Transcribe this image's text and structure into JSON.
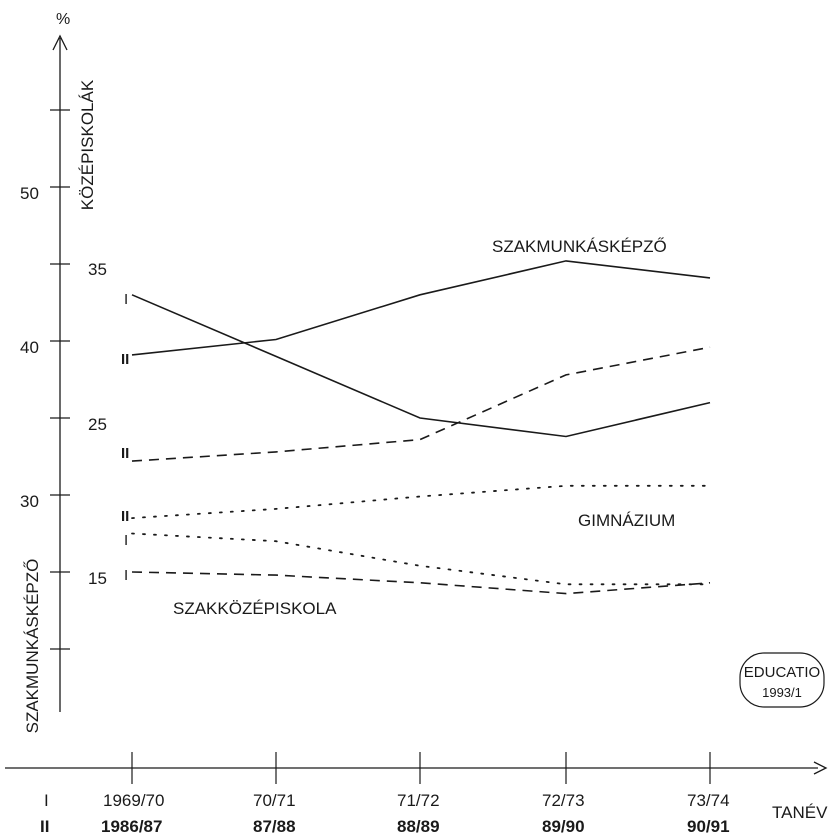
{
  "chart_data": {
    "type": "line",
    "title": "",
    "y_unit_label": "%",
    "x_axis_label": "TANÉV",
    "left_axis_title": "SZAKMUNKÁSKÉPZŐ",
    "inner_axis_title": "KÖZÉPISKOLÁK",
    "left_axis_ticks": [
      "50",
      "40",
      "30"
    ],
    "inner_axis_ticks": [
      "35",
      "25",
      "15"
    ],
    "period_markers": {
      "I": "I",
      "II": "II"
    },
    "categories_period_I": [
      "1969/70",
      "70/71",
      "71/72",
      "72/73",
      "73/74"
    ],
    "categories_period_II": [
      "1986/87",
      "87/88",
      "88/89",
      "89/90",
      "90/91"
    ],
    "series_labels": {
      "szakmunkaskepzo": "SZAKMUNKÁSKÉPZŐ",
      "gimnazium": "GIMNÁZIUM",
      "szakkozepiskola": "SZAKKÖZÉPISKOLA"
    },
    "series": [
      {
        "id": "szakmunkaskepzo-I",
        "label_key": "szakmunkaskepzo",
        "period": "I",
        "axis": "left",
        "style": "solid",
        "values": [
          43.0,
          39.0,
          35.0,
          33.8,
          36.0
        ]
      },
      {
        "id": "szakmunkaskepzo-II",
        "label_key": "szakmunkaskepzo",
        "period": "II",
        "axis": "left",
        "style": "solid",
        "values": [
          39.1,
          40.1,
          43.0,
          45.2,
          44.1
        ]
      },
      {
        "id": "kozepiskola-dashed-II",
        "label_key": "szakkozepiskola",
        "period": "II",
        "axis": "inner",
        "style": "dashed",
        "values": [
          22.2,
          22.8,
          23.6,
          27.8,
          29.6
        ]
      },
      {
        "id": "gimnazium-II",
        "label_key": "gimnazium",
        "period": "II",
        "axis": "inner",
        "style": "dotted",
        "values": [
          18.5,
          19.1,
          19.9,
          20.6,
          20.6
        ]
      },
      {
        "id": "gimnazium-I",
        "label_key": "gimnazium",
        "period": "I",
        "axis": "inner",
        "style": "dotted",
        "values": [
          17.5,
          17.0,
          15.4,
          14.2,
          14.2
        ]
      },
      {
        "id": "szakkozepiskola-I",
        "label_key": "szakkozepiskola",
        "period": "I",
        "axis": "inner",
        "style": "dashed",
        "values": [
          15.0,
          14.8,
          14.3,
          13.6,
          14.3
        ]
      }
    ],
    "left_ylim": [
      20,
      55
    ],
    "inner_ylim": [
      5,
      40
    ],
    "grid": false,
    "legend": "none"
  },
  "stamp": {
    "line1": "EDUCATIO",
    "line2": "1993/1"
  },
  "colors": {
    "ink": "#1a1a1a",
    "background": "#ffffff"
  }
}
